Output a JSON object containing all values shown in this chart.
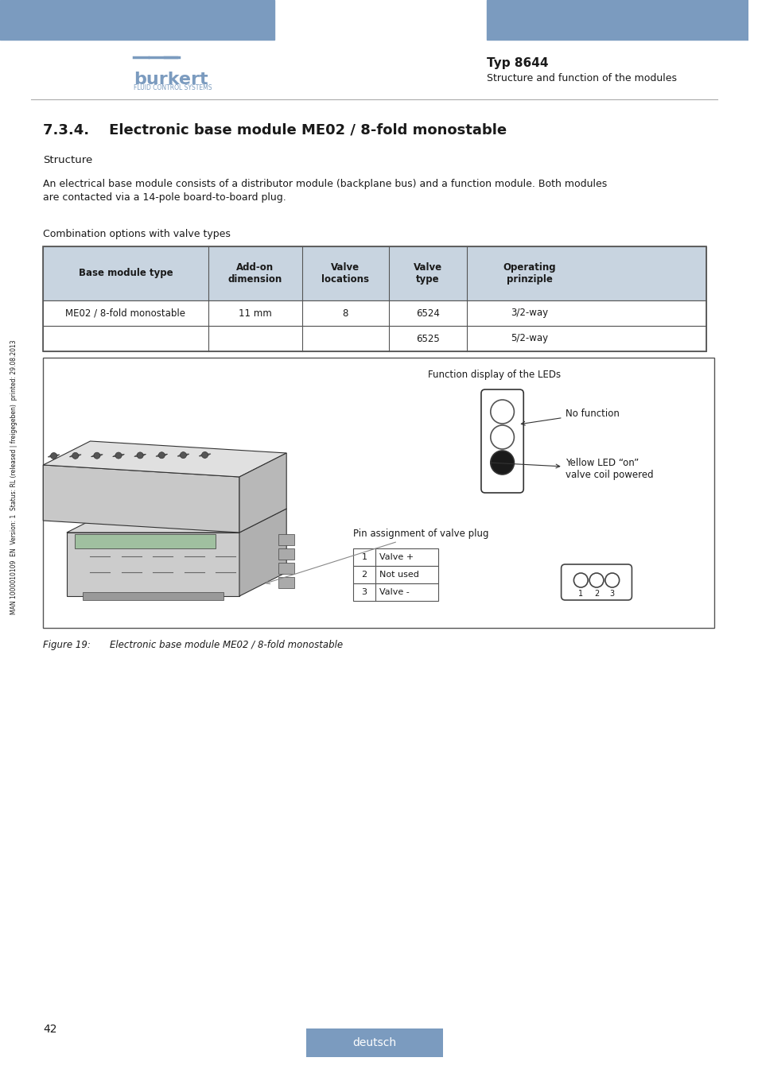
{
  "page_title": "Typ 8644",
  "page_subtitle": "Structure and function of the modules",
  "section_title": "7.3.4.    Electronic base module ME02 / 8-fold monostable",
  "structure_label": "Structure",
  "body_text_1": "An electrical base module consists of a distributor module (backplane bus) and a function module. Both modules",
  "body_text_2": "are contacted via a 14-pole board-to-board plug.",
  "combo_label": "Combination options with valve types",
  "table_headers": [
    "Base module type",
    "Add-on\ndimension",
    "Valve\nlocations",
    "Valve\ntype",
    "Operating\nprinziple"
  ],
  "table_row1": [
    "ME02 / 8-fold monostable",
    "11 mm",
    "8",
    "6524",
    "3/2-way"
  ],
  "table_row2": [
    "",
    "",
    "",
    "6525",
    "5/2-way"
  ],
  "header_bg": "#8fa8c8",
  "figure_label": "Figure 19:",
  "figure_caption": "Electronic base module ME02 / 8-fold monostable",
  "led_label1": "No function",
  "led_label2": "Yellow LED “on”\nvalve coil powered",
  "pin_label": "Pin assignment of valve plug",
  "pin_rows": [
    [
      "1",
      "Valve +"
    ],
    [
      "2",
      "Not used"
    ],
    [
      "3",
      "Valve -"
    ]
  ],
  "led_display_label": "Function display of the LEDs",
  "side_text": "MAN 1000010109  EN  Version: 1  Status: RL (released | freigegeben)  printed: 29.08.2013",
  "page_number": "42",
  "bottom_text": "deutsch",
  "bg_color": "#ffffff",
  "header_blue": "#7b9bbf",
  "table_header_bg": "#c8d4e0",
  "table_border": "#555555",
  "text_color": "#1a1a1a"
}
